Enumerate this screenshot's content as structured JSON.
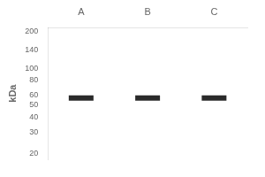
{
  "chart_data": {
    "type": "scatter",
    "ylabel": "kDa",
    "categories": [
      "A",
      "B",
      "C"
    ],
    "values": [
      57,
      57,
      57
    ],
    "color": "#2a2a2a",
    "marker": "dash",
    "log": "y",
    "ylim": [
      18,
      215
    ],
    "yticks": [
      200,
      140,
      100,
      80,
      60,
      50,
      40,
      30,
      20
    ],
    "grid": false
  }
}
